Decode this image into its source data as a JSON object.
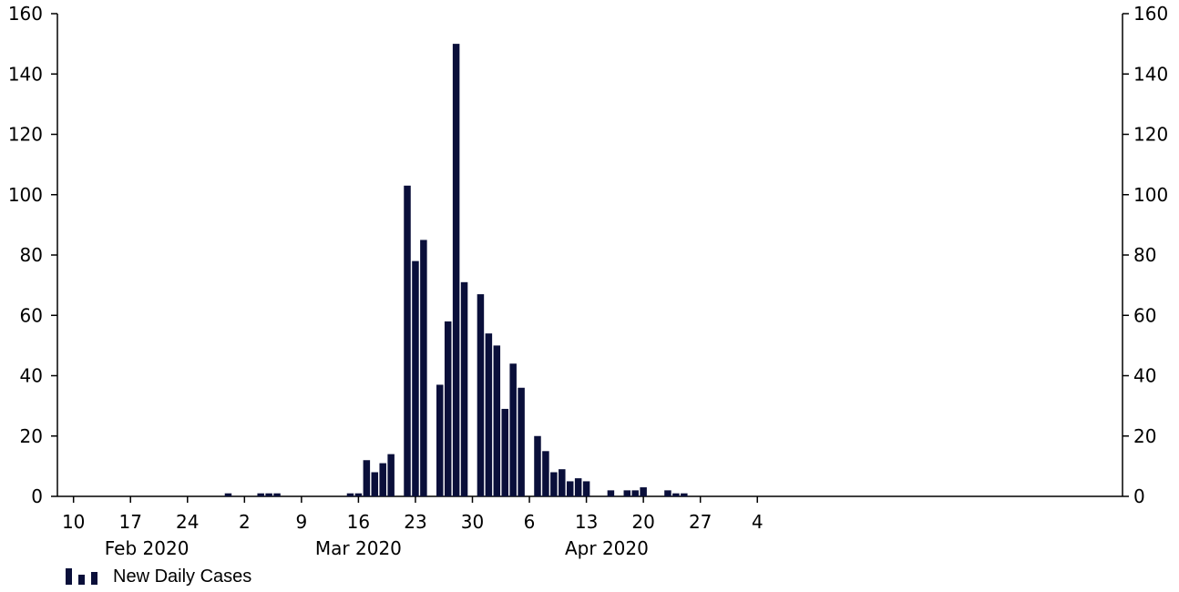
{
  "chart_data": {
    "type": "bar",
    "x_axis": {
      "start_date": "2020-02-09",
      "tick_labels": [
        {
          "label": "10",
          "date": "2020-02-10"
        },
        {
          "label": "17",
          "date": "2020-02-17"
        },
        {
          "label": "24",
          "date": "2020-02-24"
        },
        {
          "label": "2",
          "date": "2020-03-02"
        },
        {
          "label": "9",
          "date": "2020-03-09"
        },
        {
          "label": "16",
          "date": "2020-03-16"
        },
        {
          "label": "23",
          "date": "2020-03-23"
        },
        {
          "label": "30",
          "date": "2020-03-30"
        },
        {
          "label": "6",
          "date": "2020-04-06"
        },
        {
          "label": "13",
          "date": "2020-04-13"
        },
        {
          "label": "20",
          "date": "2020-04-20"
        },
        {
          "label": "27",
          "date": "2020-04-27"
        },
        {
          "label": "4",
          "date": "2020-05-04"
        }
      ],
      "month_labels": [
        "Feb 2020",
        "Mar 2020",
        "Apr 2020"
      ]
    },
    "y_axis": {
      "min": 0,
      "max": 160,
      "ticks": [
        0,
        20,
        40,
        60,
        80,
        100,
        120,
        140,
        160
      ]
    },
    "y2_axis": {
      "min": 0,
      "max": 160,
      "ticks": [
        0,
        20,
        40,
        60,
        80,
        100,
        120,
        140,
        160
      ]
    },
    "series": [
      {
        "name": "New Daily Cases",
        "color": "#0a0f3a",
        "points": [
          {
            "date": "2020-02-29",
            "value": 1
          },
          {
            "date": "2020-03-04",
            "value": 1
          },
          {
            "date": "2020-03-05",
            "value": 1
          },
          {
            "date": "2020-03-06",
            "value": 1
          },
          {
            "date": "2020-03-15",
            "value": 1
          },
          {
            "date": "2020-03-16",
            "value": 1
          },
          {
            "date": "2020-03-17",
            "value": 12
          },
          {
            "date": "2020-03-18",
            "value": 8
          },
          {
            "date": "2020-03-19",
            "value": 11
          },
          {
            "date": "2020-03-20",
            "value": 14
          },
          {
            "date": "2020-03-22",
            "value": 103
          },
          {
            "date": "2020-03-23",
            "value": 78
          },
          {
            "date": "2020-03-24",
            "value": 85
          },
          {
            "date": "2020-03-26",
            "value": 37
          },
          {
            "date": "2020-03-27",
            "value": 58
          },
          {
            "date": "2020-03-28",
            "value": 150
          },
          {
            "date": "2020-03-29",
            "value": 71
          },
          {
            "date": "2020-03-31",
            "value": 67
          },
          {
            "date": "2020-04-01",
            "value": 54
          },
          {
            "date": "2020-04-02",
            "value": 50
          },
          {
            "date": "2020-04-03",
            "value": 29
          },
          {
            "date": "2020-04-04",
            "value": 44
          },
          {
            "date": "2020-04-05",
            "value": 36
          },
          {
            "date": "2020-04-07",
            "value": 20
          },
          {
            "date": "2020-04-08",
            "value": 15
          },
          {
            "date": "2020-04-09",
            "value": 8
          },
          {
            "date": "2020-04-10",
            "value": 9
          },
          {
            "date": "2020-04-11",
            "value": 5
          },
          {
            "date": "2020-04-12",
            "value": 6
          },
          {
            "date": "2020-04-13",
            "value": 5
          },
          {
            "date": "2020-04-16",
            "value": 2
          },
          {
            "date": "2020-04-18",
            "value": 2
          },
          {
            "date": "2020-04-19",
            "value": 2
          },
          {
            "date": "2020-04-20",
            "value": 3
          },
          {
            "date": "2020-04-23",
            "value": 2
          },
          {
            "date": "2020-04-24",
            "value": 1
          },
          {
            "date": "2020-04-25",
            "value": 1
          }
        ]
      }
    ],
    "legend": {
      "position": "bottom-left",
      "label": "New Daily Cases"
    },
    "grid": false
  }
}
